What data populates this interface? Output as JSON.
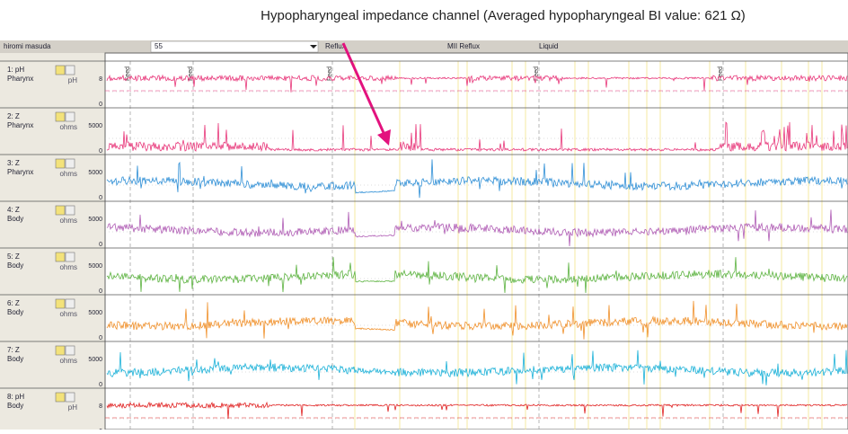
{
  "annotation": "Hypopharyngeal impedance channel (Averaged hypopharyngeal BI value: 621 Ω)",
  "header": {
    "patient": "hiromi masuda",
    "field": "55",
    "reflux": "Reflux",
    "mii": "MII Reflux",
    "liquid": "Liquid"
  },
  "channels": [
    {
      "label": "1: pH",
      "site": "Pharynx",
      "unit": "pH",
      "scale_max": 8,
      "scale_min": 0
    },
    {
      "label": "2: Z",
      "site": "Pharynx",
      "unit": "ohms",
      "scale_max": 5000,
      "scale_min": 0
    },
    {
      "label": "3: Z",
      "site": "Pharynx",
      "unit": "ohms",
      "scale_max": 5000,
      "scale_min": 0
    },
    {
      "label": "4: Z",
      "site": "Body",
      "unit": "ohms",
      "scale_max": 5000,
      "scale_min": 0
    },
    {
      "label": "5: Z",
      "site": "Body",
      "unit": "ohms",
      "scale_max": 5000,
      "scale_min": 0
    },
    {
      "label": "6: Z",
      "site": "Body",
      "unit": "ohms",
      "scale_max": 5000,
      "scale_min": 0
    },
    {
      "label": "7: Z",
      "site": "Body",
      "unit": "ohms",
      "scale_max": 5000,
      "scale_min": 0
    },
    {
      "label": "8: pH",
      "site": "Body",
      "unit": "pH",
      "scale_max": 8,
      "scale_min": 0
    }
  ],
  "feeds": [
    "Feed",
    "Feed",
    "Feed",
    "Feed",
    "Feed"
  ]
}
